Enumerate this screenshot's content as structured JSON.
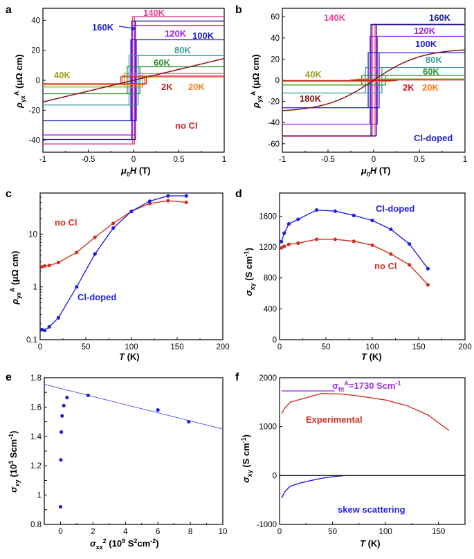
{
  "chart_data": [
    {
      "panel": "a",
      "type": "line",
      "xlabel": "μ0H (T)",
      "ylabel": "ρyxA (μΩ cm)",
      "xlim": [
        -1,
        1
      ],
      "ylim": [
        -48,
        48
      ],
      "xticks": [
        -1,
        -0.5,
        0,
        0.5,
        1
      ],
      "xtick_labels": [
        "-1",
        "-0.5",
        "0",
        "0.5",
        "1"
      ],
      "yticks": [
        -40,
        -20,
        0,
        20,
        40
      ],
      "ytick_labels": [
        "-40",
        "-20",
        "0",
        "20",
        "40"
      ],
      "loops": [
        {
          "name": "140K",
          "sat": 42.5,
          "hc": 0.01,
          "color": "#ee3d8f"
        },
        {
          "name": "160K",
          "sat": 39.5,
          "hc": 0.02,
          "color": "#1a1a8c"
        },
        {
          "name": "120K",
          "sat": 36.5,
          "hc": 0.015,
          "color": "#a020f0"
        },
        {
          "name": "100K",
          "sat": 27,
          "hc": 0.03,
          "color": "#1f1fd0"
        },
        {
          "name": "80K",
          "sat": 16.5,
          "hc": 0.05,
          "color": "#3a9a9a"
        },
        {
          "name": "60K",
          "sat": 9,
          "hc": 0.07,
          "color": "#2e8b2e"
        },
        {
          "name": "40K",
          "sat": 4.5,
          "hc": 0.1,
          "color": "#a0a020"
        },
        {
          "name": "20K",
          "sat": 3,
          "hc": 0.12,
          "color": "#f08020"
        },
        {
          "name": "2K",
          "sat": 2.3,
          "hc": 0.14,
          "color": "#cc2222"
        }
      ],
      "curve": {
        "name": "no Cl linear",
        "slope": 14.5,
        "curv": 2.2,
        "color": "#8b1010"
      },
      "labels": [
        {
          "text": "140K",
          "color": "#ee3d8f"
        },
        {
          "text": "160K",
          "color": "#1f1fd0"
        },
        {
          "text": "120K",
          "color": "#a020f0"
        },
        {
          "text": "100K",
          "color": "#1f1fd0"
        },
        {
          "text": "80K",
          "color": "#3a9a9a"
        },
        {
          "text": "60K",
          "color": "#2e8b2e"
        },
        {
          "text": "40K",
          "color": "#a0a020"
        },
        {
          "text": "2K",
          "color": "#cc2222"
        },
        {
          "text": "20K",
          "color": "#f08020"
        },
        {
          "text": "no Cl",
          "color": "#cc2222"
        }
      ]
    },
    {
      "panel": "b",
      "type": "line",
      "xlabel": "μ0H (T)",
      "ylabel": "ρyxA (μΩ cm)",
      "xlim": [
        -1,
        1
      ],
      "ylim": [
        -68,
        68
      ],
      "xticks": [
        -1,
        -0.5,
        0,
        0.5,
        1
      ],
      "xtick_labels": [
        "-1",
        "-0.5",
        "0",
        "0.5",
        "1"
      ],
      "yticks": [
        -60,
        -40,
        -20,
        0,
        20,
        40,
        60
      ],
      "ytick_labels": [
        "-60",
        "-40",
        "-20",
        "0",
        "20",
        "40",
        "60"
      ],
      "loops": [
        {
          "name": "140K",
          "sat": 53,
          "hc": 0.015,
          "color": "#ee3d8f"
        },
        {
          "name": "160K",
          "sat": 52.5,
          "hc": 0.03,
          "color": "#1a1a8c"
        },
        {
          "name": "120K",
          "sat": 41.5,
          "hc": 0.04,
          "color": "#a020f0"
        },
        {
          "name": "100K",
          "sat": 26,
          "hc": 0.06,
          "color": "#1f1fd0"
        },
        {
          "name": "80K",
          "sat": 12,
          "hc": 0.09,
          "color": "#3a9a9a"
        },
        {
          "name": "60K",
          "sat": 4.5,
          "hc": 0.13,
          "color": "#2e8b2e"
        },
        {
          "name": "40K",
          "sat": 1.2,
          "hc": 0.18,
          "color": "#a0a020"
        },
        {
          "name": "20K",
          "sat": 0.5,
          "hc": 0.22,
          "color": "#f08020"
        },
        {
          "name": "2K",
          "sat": 0.3,
          "hc": 0.25,
          "color": "#cc2222"
        }
      ],
      "curve": {
        "name": "180K",
        "amp": 30,
        "k": 1.9,
        "color": "#8b1010"
      },
      "labels": [
        {
          "text": "140K",
          "color": "#ee3d8f"
        },
        {
          "text": "160K",
          "color": "#1a1a8c"
        },
        {
          "text": "120K",
          "color": "#a020f0"
        },
        {
          "text": "100K",
          "color": "#1f1fd0"
        },
        {
          "text": "80K",
          "color": "#3a9a9a"
        },
        {
          "text": "60K",
          "color": "#2e8b2e"
        },
        {
          "text": "40K",
          "color": "#a0a020"
        },
        {
          "text": "180K",
          "color": "#8b1010"
        },
        {
          "text": "2K",
          "color": "#cc2222"
        },
        {
          "text": "20K",
          "color": "#f08020"
        },
        {
          "text": "Cl-doped",
          "color": "#1f1fd0"
        }
      ]
    },
    {
      "panel": "c",
      "type": "line",
      "yscale": "log",
      "xlabel": "T (K)",
      "ylabel": "ρyxA (μΩ cm)",
      "xlim": [
        0,
        200
      ],
      "ylim": [
        0.1,
        60
      ],
      "xticks": [
        0,
        50,
        100,
        150,
        200
      ],
      "xtick_labels": [
        "0",
        "50",
        "100",
        "150",
        "200"
      ],
      "yticks": [
        0.1,
        1,
        10
      ],
      "ytick_labels": [
        "0.1",
        "1",
        "10"
      ],
      "series": [
        {
          "name": "no Cl",
          "color": "#d03020",
          "x": [
            2,
            5,
            10,
            20,
            40,
            60,
            80,
            100,
            120,
            140,
            160
          ],
          "y": [
            2.4,
            2.5,
            2.55,
            2.9,
            4.5,
            8.7,
            16,
            27,
            38,
            43,
            40
          ]
        },
        {
          "name": "Cl-doped",
          "color": "#1f1fe0",
          "x": [
            2,
            5,
            10,
            20,
            40,
            60,
            80,
            100,
            120,
            140,
            160
          ],
          "y": [
            0.155,
            0.15,
            0.175,
            0.26,
            1.0,
            4.2,
            13,
            27,
            42,
            53,
            53
          ]
        }
      ],
      "labels": [
        {
          "text": "no Cl",
          "color": "#d03020"
        },
        {
          "text": "Cl-doped",
          "color": "#1f1fe0"
        }
      ]
    },
    {
      "panel": "d",
      "type": "line",
      "xlabel": "T (K)",
      "ylabel": "σxy (S cm-1)",
      "xlim": [
        0,
        200
      ],
      "ylim": [
        0,
        1900
      ],
      "xticks": [
        0,
        50,
        100,
        150,
        200
      ],
      "xtick_labels": [
        "0",
        "50",
        "100",
        "150",
        "200"
      ],
      "yticks": [
        0,
        400,
        800,
        1200,
        1600
      ],
      "ytick_labels": [
        "0",
        "400",
        "800",
        "1200",
        "1600"
      ],
      "series": [
        {
          "name": "Cl-doped",
          "color": "#1f1fe0",
          "x": [
            2,
            5,
            10,
            20,
            40,
            60,
            80,
            100,
            120,
            140,
            160
          ],
          "y": [
            1270,
            1380,
            1500,
            1560,
            1680,
            1665,
            1610,
            1545,
            1430,
            1240,
            920
          ]
        },
        {
          "name": "no Cl",
          "color": "#d03020",
          "x": [
            2,
            5,
            10,
            20,
            40,
            60,
            80,
            100,
            120,
            140,
            160
          ],
          "y": [
            1190,
            1210,
            1235,
            1250,
            1300,
            1300,
            1275,
            1225,
            1110,
            970,
            710
          ]
        }
      ],
      "labels": [
        {
          "text": "Cl-doped",
          "color": "#1f1fe0"
        },
        {
          "text": "no Cl",
          "color": "#d03020"
        }
      ]
    },
    {
      "panel": "e",
      "type": "scatter",
      "xlabel": "σxx2 (109 S2cm-2)",
      "ylabel": "σxy (103 Scm-1)",
      "xlim": [
        -1,
        10
      ],
      "ylim": [
        0.8,
        1.8
      ],
      "xticks": [
        0,
        2,
        4,
        6,
        8,
        10
      ],
      "xtick_labels": [
        "0",
        "2",
        "4",
        "6",
        "8",
        "10"
      ],
      "yticks": [
        0.8,
        0.9,
        1.0,
        1.1,
        1.2,
        1.3,
        1.4,
        1.5,
        1.6,
        1.7,
        1.8
      ],
      "ytick_labels": [
        "0.8",
        "",
        "1",
        "",
        "1.2",
        "",
        "1.4",
        "",
        "1.6",
        "",
        "1.8"
      ],
      "points": {
        "x": [
          0.0,
          0.02,
          0.05,
          0.1,
          0.2,
          0.4,
          1.7,
          6.0,
          7.9
        ],
        "y": [
          0.92,
          1.24,
          1.43,
          1.54,
          1.61,
          1.665,
          1.68,
          1.58,
          1.5
        ]
      },
      "fit": {
        "x": [
          -1,
          10
        ],
        "y": [
          1.755,
          1.45
        ],
        "color": "#5a5ae8"
      },
      "point_color": "#1f1fe0"
    },
    {
      "panel": "f",
      "type": "line",
      "xlabel": "T (K)",
      "ylabel": "σxy (S cm-1)",
      "xlim": [
        0,
        175
      ],
      "ylim": [
        -1000,
        2000
      ],
      "xticks": [
        0,
        50,
        100,
        150
      ],
      "xtick_labels": [
        "0",
        "50",
        "100",
        "150"
      ],
      "yticks": [
        -1000,
        0,
        1000,
        2000
      ],
      "ytick_labels": [
        "-1000",
        "0",
        "1000",
        "2000"
      ],
      "series": [
        {
          "name": "Experimental",
          "color": "#d03020",
          "x": [
            2,
            5,
            10,
            20,
            40,
            60,
            80,
            100,
            120,
            140,
            160
          ],
          "y": [
            1270,
            1380,
            1500,
            1560,
            1680,
            1665,
            1610,
            1545,
            1430,
            1240,
            920
          ]
        },
        {
          "name": "skew scattering",
          "color": "#1f1fe0",
          "x": [
            2,
            5,
            10,
            20,
            30,
            40,
            50,
            60
          ],
          "y": [
            -460,
            -330,
            -220,
            -150,
            -100,
            -55,
            -25,
            -5
          ]
        },
        {
          "name": "zero line",
          "color": "#000000",
          "x": [
            0,
            175
          ],
          "y": [
            0,
            0
          ]
        },
        {
          "name": "fit",
          "color": "#a030e0",
          "x": [
            2,
            52
          ],
          "y": [
            1730,
            1730
          ]
        }
      ],
      "labels": [
        {
          "text": "σfitA=1730 Scm-1",
          "color": "#a030e0"
        },
        {
          "text": "Experimental",
          "color": "#d03020"
        },
        {
          "text": "skew scattering",
          "color": "#1f1fe0"
        }
      ]
    }
  ]
}
